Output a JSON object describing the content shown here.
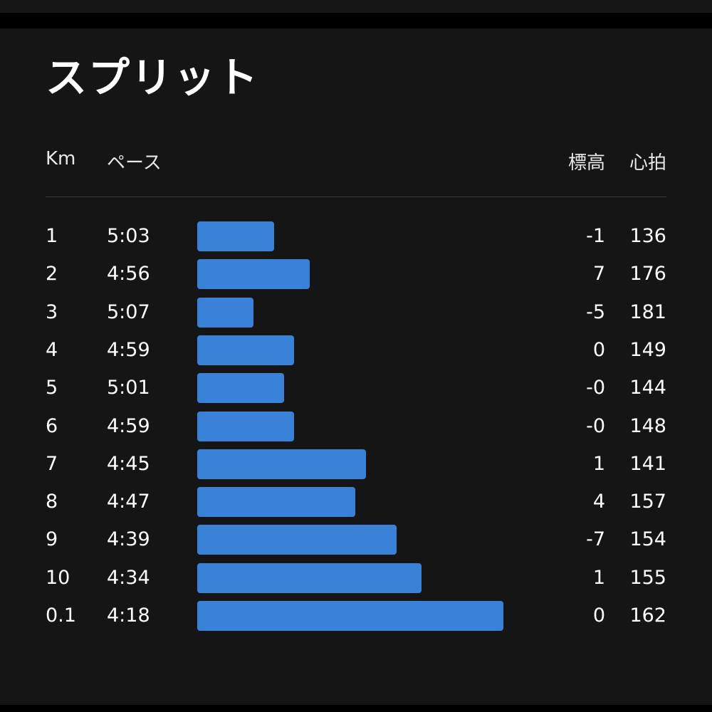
{
  "title": "スプリット",
  "header": {
    "km": "Km",
    "pace": "ペース",
    "elevation": "標高",
    "heart_rate": "心拍"
  },
  "colors": {
    "bar": "#3a81d8",
    "panel_bg": "#151515"
  },
  "splits": [
    {
      "km": "1",
      "pace": "5:03",
      "elevation": "-1",
      "heart_rate": "136"
    },
    {
      "km": "2",
      "pace": "4:56",
      "elevation": "7",
      "heart_rate": "176"
    },
    {
      "km": "3",
      "pace": "5:07",
      "elevation": "-5",
      "heart_rate": "181"
    },
    {
      "km": "4",
      "pace": "4:59",
      "elevation": "0",
      "heart_rate": "149"
    },
    {
      "km": "5",
      "pace": "5:01",
      "elevation": "-0",
      "heart_rate": "144"
    },
    {
      "km": "6",
      "pace": "4:59",
      "elevation": "-0",
      "heart_rate": "148"
    },
    {
      "km": "7",
      "pace": "4:45",
      "elevation": "1",
      "heart_rate": "141"
    },
    {
      "km": "8",
      "pace": "4:47",
      "elevation": "4",
      "heart_rate": "157"
    },
    {
      "km": "9",
      "pace": "4:39",
      "elevation": "-7",
      "heart_rate": "154"
    },
    {
      "km": "10",
      "pace": "4:34",
      "elevation": "1",
      "heart_rate": "155"
    },
    {
      "km": "0.1",
      "pace": "4:18",
      "elevation": "0",
      "heart_rate": "162"
    }
  ]
}
